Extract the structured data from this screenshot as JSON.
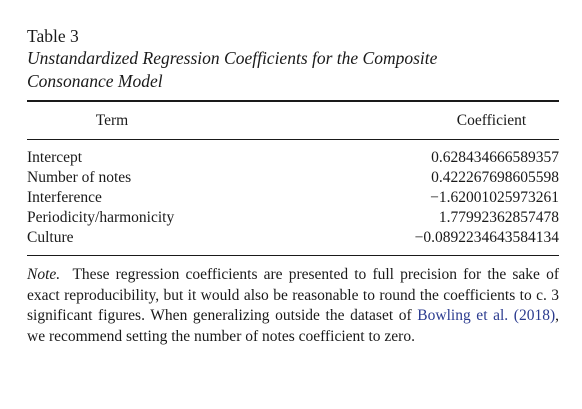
{
  "table": {
    "label": "Table 3",
    "title_line1": "Unstandardized Regression Coefficients for the Composite",
    "title_line2": "Consonance Model",
    "headers": {
      "term": "Term",
      "coefficient": "Coefficient"
    },
    "rows": [
      {
        "term": "Intercept",
        "coefficient": "0.628434666589357"
      },
      {
        "term": "Number of notes",
        "coefficient": "0.422267698605598"
      },
      {
        "term": "Interference",
        "coefficient": "−1.62001025973261"
      },
      {
        "term": "Periodicity/harmonicity",
        "coefficient": "1.77992362857478"
      },
      {
        "term": "Culture",
        "coefficient": "−0.0892234643584134"
      }
    ],
    "note": {
      "label": "Note.",
      "text_before_citation": "These regression coefficients are presented to full precision for the sake of exact reproducibility, but it would also be reasonable to round the coefficients to c. 3 significant figures. When generalizing outside the dataset of",
      "citation": "Bowling et al. (2018)",
      "text_after_citation": ", we recommend setting the number of notes coefficient to zero."
    }
  }
}
